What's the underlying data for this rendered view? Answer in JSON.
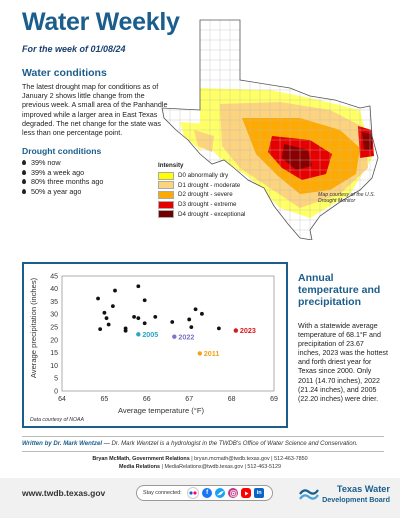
{
  "header": {
    "title": "Water Weekly",
    "subtitle": "For the week of 01/08/24"
  },
  "conditions": {
    "heading": "Water conditions",
    "body": "The latest drought map for conditions as of January 2 shows little change from the previous week. A small area of the Panhandle improved while a larger area in East Texas degraded. The net change for the state was less than one percentage point."
  },
  "drought_conditions": {
    "heading": "Drought conditions",
    "items": [
      "39% now",
      "39% a week ago",
      "80% three months ago",
      "50% a year ago"
    ]
  },
  "map": {
    "legend_title": "Intensity",
    "legend": [
      {
        "label": "D0 abnormally dry",
        "color": "#ffff00"
      },
      {
        "label": "D1 drought - moderate",
        "color": "#fcd37f"
      },
      {
        "label": "D2 drought - severe",
        "color": "#ffaa00"
      },
      {
        "label": "D3 drought - extreme",
        "color": "#e60000"
      },
      {
        "label": "D4 drought - exceptional",
        "color": "#730000"
      }
    ],
    "credit": "Map courtesy of the U.S. Drought Monitor"
  },
  "chart_data": {
    "type": "scatter",
    "xlabel": "Average temperature (°F)",
    "ylabel": "Average precipitation (inches)",
    "xlim": [
      64,
      69
    ],
    "ylim": [
      0,
      45
    ],
    "xticks": [
      64,
      65,
      66,
      67,
      68,
      69
    ],
    "yticks": [
      0,
      5,
      10,
      15,
      20,
      25,
      30,
      35,
      40,
      45
    ],
    "grid": false,
    "points": [
      {
        "x": 64.85,
        "y": 36.2
      },
      {
        "x": 64.9,
        "y": 24.2
      },
      {
        "x": 65.0,
        "y": 30.6
      },
      {
        "x": 65.05,
        "y": 28.5
      },
      {
        "x": 65.1,
        "y": 26.0
      },
      {
        "x": 65.2,
        "y": 33.2
      },
      {
        "x": 65.25,
        "y": 39.3
      },
      {
        "x": 65.5,
        "y": 24.5
      },
      {
        "x": 65.5,
        "y": 23.6
      },
      {
        "x": 65.7,
        "y": 29.0
      },
      {
        "x": 65.8,
        "y": 28.5
      },
      {
        "x": 65.8,
        "y": 41.0
      },
      {
        "x": 65.95,
        "y": 35.5
      },
      {
        "x": 65.95,
        "y": 26.5
      },
      {
        "x": 66.2,
        "y": 29.0
      },
      {
        "x": 66.6,
        "y": 27.0
      },
      {
        "x": 67.0,
        "y": 28.0
      },
      {
        "x": 67.05,
        "y": 25.0
      },
      {
        "x": 67.15,
        "y": 32.0
      },
      {
        "x": 67.3,
        "y": 30.2
      },
      {
        "x": 67.7,
        "y": 24.5
      }
    ],
    "highlights": [
      {
        "label": "2005",
        "x": 65.8,
        "y": 22.2,
        "color": "#2aa6c4"
      },
      {
        "label": "2022",
        "x": 66.65,
        "y": 21.24,
        "color": "#7b74c9"
      },
      {
        "label": "2011",
        "x": 67.25,
        "y": 14.7,
        "color": "#f2a11a"
      },
      {
        "label": "2023",
        "x": 68.1,
        "y": 23.67,
        "color": "#d7191c"
      }
    ],
    "credit": "Data courtesy of NOAA"
  },
  "annual": {
    "heading": "Annual temperature and precipitation",
    "body": "With a statewide average temperature of 68.1°F and precipitation of 23.67 inches, 2023 was the hottest and forth driest year for Texas since 2000. Only 2011 (14.70 inches), 2022 (21.24 inches), and 2005 (22.20 inches) were drier."
  },
  "byline": {
    "written_by": "Written by Dr. Mark Wentzel",
    "bio": " — Dr. Mark Wentzel is a hydrologist in the TWDB's Office of Water Science and Conservation."
  },
  "contacts": [
    {
      "name": "Bryan McMath, Government Relations",
      "details": " | bryan.mcmath@twdb.texas.gov | 512-463-7850"
    },
    {
      "name": "Media Relations",
      "details": " | MediaRelations@twdb.texas.gov | 512-463-5129"
    }
  ],
  "footer": {
    "website": "www.twdb.texas.gov",
    "stay_connected": "Stay connected:",
    "social_icons": [
      "flickr-icon",
      "facebook-icon",
      "twitter-icon",
      "instagram-icon",
      "youtube-icon",
      "linkedin-icon"
    ],
    "logo_line1": "Texas Water",
    "logo_line2": "Development Board"
  }
}
